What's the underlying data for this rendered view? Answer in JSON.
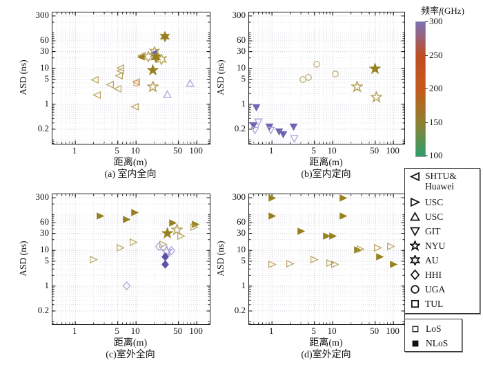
{
  "axes_common": {
    "ylabel": "ASD (ns)",
    "xlabel": "距离(m)"
  },
  "colorbar": {
    "title_prefix": "频率",
    "title_f": "f",
    "title_suffix": "(GHz)",
    "ticks": [
      300,
      250,
      200,
      150,
      100
    ],
    "range": [
      100,
      300
    ],
    "gradient_top_to_bottom": [
      "#7b70b2",
      "#96657f",
      "#bf4e22",
      "#c55a1c",
      "#8d8030",
      "#2f9e6d"
    ],
    "gradient_stops_pct": [
      0,
      10,
      25,
      50,
      75,
      100
    ]
  },
  "legend": {
    "institutions": [
      {
        "key": "shtu-huawei",
        "marker": "tri-left",
        "label": "SHTU&\nHuawei"
      },
      {
        "key": "usc-right",
        "marker": "tri-right",
        "label": "USC"
      },
      {
        "key": "usc-up",
        "marker": "tri-up",
        "label": "USC"
      },
      {
        "key": "git",
        "marker": "tri-down",
        "label": "GIT"
      },
      {
        "key": "nyu",
        "marker": "star5",
        "label": "NYU"
      },
      {
        "key": "au",
        "marker": "star6",
        "label": "AU"
      },
      {
        "key": "hhi",
        "marker": "diamond",
        "label": "HHI"
      },
      {
        "key": "uga",
        "marker": "circle",
        "label": "UGA"
      },
      {
        "key": "tul",
        "marker": "square",
        "label": "TUL"
      }
    ],
    "los": [
      {
        "key": "los",
        "marker": "square",
        "filled": false,
        "label": "LoS"
      },
      {
        "key": "nlos",
        "marker": "square",
        "filled": true,
        "label": "NLoS"
      }
    ]
  },
  "chart_data": [
    {
      "id": "a",
      "type": "scatter",
      "caption": "(a) 室内全向",
      "xlabel": "距离(m)",
      "ylabel": "ASD (ns)",
      "xticks": [
        1,
        5,
        10,
        50,
        100
      ],
      "yticks": [
        300,
        60,
        30,
        10,
        5,
        1,
        0.2
      ],
      "xrange": [
        0.42,
        163
      ],
      "yrange": [
        0.078,
        375
      ],
      "grid": true,
      "series": [
        {
          "name": "SHTU&Huawei",
          "los": "LoS",
          "marker": "tri-left",
          "color": "#bca865",
          "filled": false,
          "points": [
            [
              2.1,
              4.8
            ],
            [
              2.3,
              1.8
            ],
            [
              3.7,
              3.6
            ],
            [
              5.0,
              2.7
            ],
            [
              5.2,
              6.3
            ],
            [
              5.5,
              8.5
            ],
            [
              5.6,
              10.3
            ],
            [
              9.5,
              0.85
            ],
            [
              10,
              4.3
            ],
            [
              12.5,
              23
            ]
          ]
        },
        {
          "name": "SHTU&Huawei",
          "los": "NLoS",
          "marker": "tri-left",
          "color": "#97801e",
          "filled": true,
          "points": [
            [
              12,
              21
            ]
          ]
        },
        {
          "name": "SHTU&Huawei",
          "los": "NLoS",
          "marker": "tri-left",
          "color": "#6f66b2",
          "filled": true,
          "points": [
            [
              20,
              27
            ]
          ]
        },
        {
          "name": "TUL",
          "los": "LoS",
          "marker": "square",
          "color": "#dc9a64",
          "filled": false,
          "points": [
            [
              10,
              3.9
            ]
          ]
        },
        {
          "name": "AU",
          "los": "LoS",
          "marker": "star6",
          "color": "#bca865",
          "filled": false,
          "points": [
            [
              16,
              22
            ],
            [
              20,
              29
            ],
            [
              26,
              18
            ]
          ]
        },
        {
          "name": "AU",
          "los": "NLoS",
          "marker": "star6",
          "color": "#97801e",
          "filled": true,
          "points": [
            [
              21,
              21
            ],
            [
              30,
              80
            ]
          ]
        },
        {
          "name": "NYU",
          "los": "NLoS",
          "marker": "star5",
          "color": "#97801e",
          "filled": true,
          "points": [
            [
              19,
              9
            ]
          ]
        },
        {
          "name": "NYU",
          "los": "LoS",
          "marker": "star5",
          "color": "#bca865",
          "filled": false,
          "points": [
            [
              19,
              3.1
            ]
          ]
        },
        {
          "name": "USC",
          "los": "LoS",
          "marker": "tri-up",
          "color": "#aba4d8",
          "filled": false,
          "points": [
            [
              33,
              1.9
            ],
            [
              78,
              3.9
            ]
          ]
        }
      ]
    },
    {
      "id": "b",
      "type": "scatter",
      "caption": "(b)室内定向",
      "xlabel": "距离(m)",
      "ylabel": "ASD (ns)",
      "xticks": [
        1,
        5,
        10,
        50,
        100
      ],
      "yticks": [
        300,
        60,
        30,
        10,
        5,
        1,
        0.2
      ],
      "xrange": [
        0.42,
        163
      ],
      "yrange": [
        0.078,
        375
      ],
      "grid": true,
      "series": [
        {
          "name": "GIT",
          "los": "NLoS",
          "marker": "tri-down",
          "color": "#6f66b2",
          "filled": true,
          "points": [
            [
              0.55,
              0.8
            ],
            [
              0.5,
              0.26
            ],
            [
              0.9,
              0.23
            ],
            [
              1.3,
              0.17
            ],
            [
              1.55,
              0.14
            ],
            [
              2.3,
              0.23
            ]
          ]
        },
        {
          "name": "GIT",
          "los": "LoS",
          "marker": "tri-down",
          "color": "#aba4d8",
          "filled": false,
          "points": [
            [
              0.6,
              0.32
            ],
            [
              0.52,
              0.19
            ],
            [
              0.95,
              0.19
            ],
            [
              2.35,
              0.11
            ]
          ]
        },
        {
          "name": "UGA",
          "los": "LoS",
          "marker": "circle",
          "color": "#bca865",
          "filled": false,
          "points": [
            [
              3.2,
              5.0
            ],
            [
              4.0,
              5.6
            ],
            [
              5.5,
              13
            ],
            [
              11,
              7
            ]
          ]
        },
        {
          "name": "NYU",
          "los": "NLoS",
          "marker": "star5",
          "color": "#97801e",
          "filled": true,
          "points": [
            [
              50,
              10
            ]
          ]
        },
        {
          "name": "NYU",
          "los": "LoS",
          "marker": "star5",
          "color": "#bca865",
          "filled": false,
          "points": [
            [
              25,
              3.1
            ],
            [
              52,
              1.6
            ]
          ]
        }
      ]
    },
    {
      "id": "c",
      "type": "scatter",
      "caption": "(c)室外全向",
      "xlabel": "距离(m)",
      "ylabel": "ASD (ns)",
      "xticks": [
        1,
        5,
        10,
        50,
        100
      ],
      "yticks": [
        300,
        60,
        30,
        10,
        5,
        1,
        0.2
      ],
      "xrange": [
        0.42,
        163
      ],
      "yrange": [
        0.078,
        375
      ],
      "grid": true,
      "series": [
        {
          "name": "USC",
          "los": "NLoS",
          "marker": "tri-right",
          "color": "#97801e",
          "filled": true,
          "points": [
            [
              2.6,
              90
            ],
            [
              7,
              75
            ],
            [
              9.5,
              115
            ],
            [
              40,
              60
            ],
            [
              95,
              55
            ]
          ]
        },
        {
          "name": "USC",
          "los": "LoS",
          "marker": "tri-right",
          "color": "#bca865",
          "filled": false,
          "points": [
            [
              2,
              5.5
            ],
            [
              5.5,
              12
            ],
            [
              9,
              17
            ],
            [
              28,
              15
            ],
            [
              55,
              25
            ],
            [
              92,
              45
            ]
          ]
        },
        {
          "name": "NYU",
          "los": "NLoS",
          "marker": "star5",
          "color": "#97801e",
          "filled": true,
          "points": [
            [
              33,
              30
            ]
          ]
        },
        {
          "name": "NYU",
          "los": "LoS",
          "marker": "star5",
          "color": "#bca865",
          "filled": false,
          "points": [
            [
              47,
              37
            ]
          ]
        },
        {
          "name": "NYU",
          "los": "LoS",
          "marker": "star5",
          "color": "#aba4d8",
          "filled": false,
          "points": [
            [
              32,
              9.5
            ]
          ]
        },
        {
          "name": "HHI",
          "los": "LoS",
          "marker": "diamond",
          "color": "#aba4d8",
          "filled": false,
          "points": [
            [
              24,
              13
            ],
            [
              38,
              10
            ],
            [
              7,
              1
            ]
          ]
        },
        {
          "name": "HHI",
          "los": "NLoS",
          "marker": "diamond",
          "color": "#5a52a6",
          "filled": true,
          "points": [
            [
              30,
              6.5
            ],
            [
              30,
              4
            ]
          ]
        }
      ]
    },
    {
      "id": "d",
      "type": "scatter",
      "caption": "(d)室外定向",
      "xlabel": "距离(m)",
      "ylabel": "ASD (ns)",
      "xticks": [
        1,
        5,
        10,
        50,
        100
      ],
      "yticks": [
        300,
        60,
        30,
        10,
        5,
        1,
        0.2
      ],
      "xrange": [
        0.42,
        163
      ],
      "yrange": [
        0.078,
        375
      ],
      "grid": true,
      "series": [
        {
          "name": "USC",
          "los": "NLoS",
          "marker": "tri-right",
          "color": "#97801e",
          "filled": true,
          "points": [
            [
              1,
              300
            ],
            [
              1,
              90
            ],
            [
              3,
              35
            ],
            [
              8,
              25
            ],
            [
              10,
              25
            ],
            [
              15,
              300
            ],
            [
              15,
              90
            ],
            [
              26,
              10.5
            ],
            [
              60,
              6.5
            ],
            [
              100,
              4
            ]
          ]
        },
        {
          "name": "USC",
          "los": "LoS",
          "marker": "tri-right",
          "color": "#bca865",
          "filled": false,
          "points": [
            [
              1,
              4
            ],
            [
              2,
              4.3
            ],
            [
              5,
              5.5
            ],
            [
              9,
              4.5
            ],
            [
              11,
              4
            ],
            [
              29,
              11
            ],
            [
              55,
              12
            ],
            [
              90,
              13
            ]
          ]
        }
      ]
    }
  ]
}
